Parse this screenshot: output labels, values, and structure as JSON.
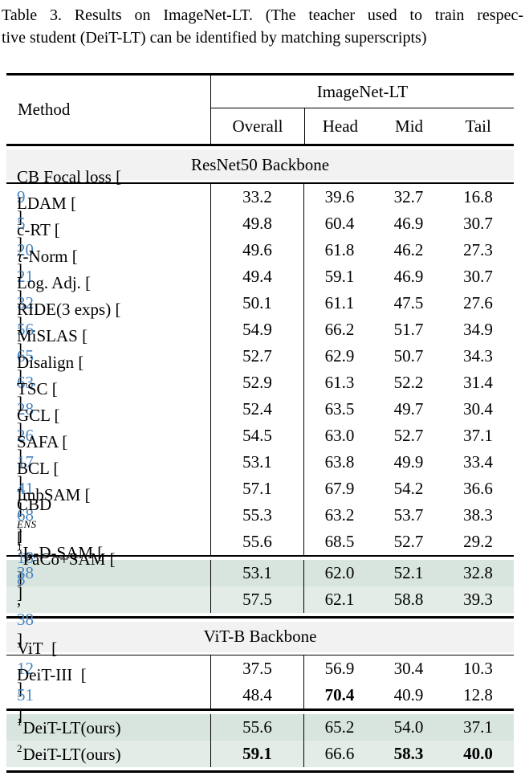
{
  "caption": {
    "line1": "Table 3. Results on ImageNet-LT. (The teacher used to train respec-",
    "line2": "tive student (DeiT-LT) can be identified by matching superscripts)"
  },
  "colors": {
    "citation_blue": "#4585c1",
    "backbone_band_bg": "#f2f2f2",
    "highlight_row_dark": "#d8e5df",
    "highlight_row_light": "#e3ece7",
    "rule_black": "#000000"
  },
  "table": {
    "method_header": "Method",
    "group_header": "ImageNet-LT",
    "columns": [
      "Overall",
      "Head",
      "Mid",
      "Tail"
    ],
    "sections": [
      {
        "kind": "backbone",
        "label": "ResNet50 Backbone",
        "rule_below": "thin"
      },
      {
        "kind": "rows",
        "highlight": false,
        "rule_below": "medium",
        "rows": [
          {
            "name": "CB Focal loss",
            "cites": [
              "9"
            ],
            "values": [
              "33.2",
              "39.6",
              "32.7",
              "16.8"
            ]
          },
          {
            "name": "LDAM",
            "cites": [
              "5"
            ],
            "values": [
              "49.8",
              "60.4",
              "46.9",
              "30.7"
            ]
          },
          {
            "name": "c-RT",
            "cites": [
              "20"
            ],
            "values": [
              "49.6",
              "61.8",
              "46.2",
              "27.3"
            ]
          },
          {
            "pre_italic": "τ",
            "name": "-Norm",
            "cites": [
              "21"
            ],
            "values": [
              "49.4",
              "59.1",
              "46.9",
              "30.7"
            ]
          },
          {
            "name": "Log. Adj.",
            "cites": [
              "32"
            ],
            "values": [
              "50.1",
              "61.1",
              "47.5",
              "27.6"
            ]
          },
          {
            "name": "RIDE(3 exps)",
            "cites": [
              "56"
            ],
            "values": [
              "54.9",
              "66.2",
              "51.7",
              "34.9"
            ]
          },
          {
            "name": "MiSLAS",
            "cites": [
              "65"
            ],
            "values": [
              "52.7",
              "62.9",
              "50.7",
              "34.3"
            ]
          },
          {
            "name": "Disalign",
            "cites": [
              "63"
            ],
            "values": [
              "52.9",
              "61.3",
              "52.2",
              "31.4"
            ]
          },
          {
            "name": "TSC",
            "cites": [
              "28"
            ],
            "values": [
              "52.4",
              "63.5",
              "49.7",
              "30.4"
            ]
          },
          {
            "name": "GCL",
            "cites": [
              "26"
            ],
            "values": [
              "54.5",
              "63.0",
              "52.7",
              "37.1"
            ]
          },
          {
            "name": "SAFA",
            "cites": [
              "17"
            ],
            "values": [
              "53.1",
              "63.8",
              "49.9",
              "33.4"
            ]
          },
          {
            "name": "BCL",
            "cites": [
              "41"
            ],
            "values": [
              "57.1",
              "67.9",
              "54.2",
              "36.6"
            ]
          },
          {
            "name": "ImbSAM",
            "cites": [
              "68"
            ],
            "values": [
              "55.3",
              "63.2",
              "53.7",
              "38.3"
            ]
          },
          {
            "name": "CBD",
            "sub_italic": "ENS",
            "cites": [
              "18"
            ],
            "values": [
              "55.6",
              "68.5",
              "52.7",
              "29.2"
            ]
          }
        ]
      },
      {
        "kind": "rows",
        "highlight": true,
        "rule_below": "thick",
        "rows": [
          {
            "sup": "1",
            "name": "L-D-SAM",
            "cites": [
              "38"
            ],
            "values": [
              "53.1",
              "62.0",
              "52.1",
              "32.8"
            ]
          },
          {
            "sup": "2",
            "name": "PaCo+SAM",
            "cites": [
              "8",
              "38"
            ],
            "values": [
              "57.5",
              "62.1",
              "58.8",
              "39.3"
            ]
          }
        ]
      },
      {
        "kind": "backbone",
        "label": "ViT-B Backbone",
        "rule_below": "thin"
      },
      {
        "kind": "rows",
        "highlight": false,
        "rule_below": "thick",
        "rows": [
          {
            "name": "ViT ",
            "cites": [
              "12"
            ],
            "values": [
              "37.5",
              "56.9",
              "30.4",
              "10.3"
            ]
          },
          {
            "name": "DeiT-III ",
            "cites": [
              "51"
            ],
            "values": [
              "48.4",
              "70.4",
              "40.9",
              "12.8"
            ],
            "bold": [
              false,
              true,
              false,
              false
            ]
          }
        ]
      },
      {
        "kind": "rows",
        "highlight": true,
        "rule_below": "thick",
        "rows": [
          {
            "sup": "1",
            "name": "DeiT-LT(ours)",
            "cites": [],
            "values": [
              "55.6",
              "65.2",
              "54.0",
              "37.1"
            ]
          },
          {
            "sup": "2",
            "name": "DeiT-LT(ours)",
            "cites": [],
            "values": [
              "59.1",
              "66.6",
              "58.3",
              "40.0"
            ],
            "bold": [
              true,
              false,
              true,
              true
            ]
          }
        ]
      }
    ]
  }
}
